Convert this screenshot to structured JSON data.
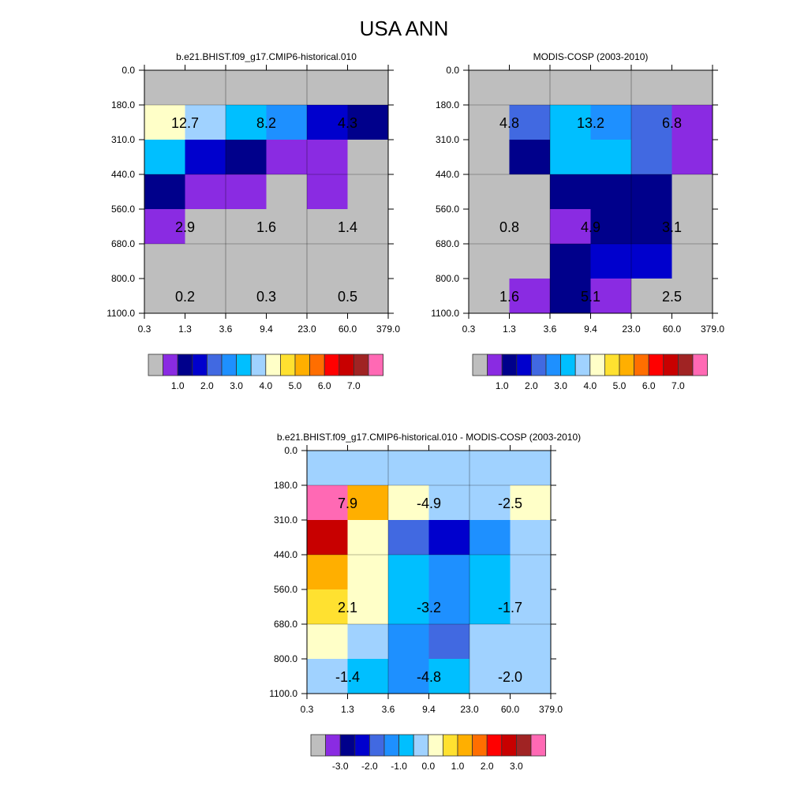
{
  "page_title": "USA ANN",
  "palette": [
    "#bebebe",
    "#8a2be2",
    "#00008b",
    "#0000cd",
    "#4169e1",
    "#1e90ff",
    "#00bfff",
    "#a0d2ff",
    "#ffffc8",
    "#ffe130",
    "#ffaf00",
    "#ff6e00",
    "#ff0000",
    "#c80000",
    "#a02323",
    "#ff69b4"
  ],
  "chart_data": [
    {
      "type": "heatmap",
      "title": "b.e21.BHIST.f09_g17.CMIP6-historical.010",
      "x_edges": [
        "0.3",
        "1.3",
        "3.6",
        "9.4",
        "23.0",
        "60.0",
        "379.0"
      ],
      "y_edges": [
        "0.0",
        "180.0",
        "310.0",
        "440.0",
        "560.0",
        "680.0",
        "800.0",
        "1100.0"
      ],
      "cell_color_index": [
        [
          0,
          0,
          0,
          0,
          0,
          0
        ],
        [
          8,
          7,
          6,
          5,
          3,
          2
        ],
        [
          6,
          3,
          2,
          1,
          1,
          0
        ],
        [
          2,
          1,
          1,
          0,
          1,
          0
        ],
        [
          1,
          0,
          0,
          0,
          0,
          0
        ],
        [
          0,
          0,
          0,
          0,
          0,
          0
        ],
        [
          0,
          0,
          0,
          0,
          0,
          0
        ]
      ],
      "group_labels": [
        {
          "col": 1,
          "row": 1,
          "text": "12.7"
        },
        {
          "col": 3,
          "row": 1,
          "text": "8.2"
        },
        {
          "col": 5,
          "row": 1,
          "text": "4.3"
        },
        {
          "col": 1,
          "row": 4,
          "text": "2.9"
        },
        {
          "col": 3,
          "row": 4,
          "text": "1.6"
        },
        {
          "col": 5,
          "row": 4,
          "text": "1.4"
        },
        {
          "col": 1,
          "row": 6,
          "text": "0.2"
        },
        {
          "col": 3,
          "row": 6,
          "text": "0.3"
        },
        {
          "col": 5,
          "row": 6,
          "text": "0.5"
        }
      ],
      "colorbar": {
        "labels": [
          "1.0",
          "2.0",
          "3.0",
          "4.0",
          "5.0",
          "6.0",
          "7.0"
        ],
        "label_boundaries": [
          2,
          4,
          6,
          8,
          10,
          12,
          14
        ]
      }
    },
    {
      "type": "heatmap",
      "title": "MODIS-COSP (2003-2010)",
      "x_edges": [
        "0.3",
        "1.3",
        "3.6",
        "9.4",
        "23.0",
        "60.0",
        "379.0"
      ],
      "y_edges": [
        "0.0",
        "180.0",
        "310.0",
        "440.0",
        "560.0",
        "680.0",
        "800.0",
        "1100.0"
      ],
      "cell_color_index": [
        [
          0,
          0,
          0,
          0,
          0,
          0
        ],
        [
          0,
          4,
          6,
          5,
          4,
          1
        ],
        [
          0,
          2,
          6,
          6,
          4,
          1
        ],
        [
          0,
          0,
          2,
          2,
          2,
          0
        ],
        [
          0,
          0,
          1,
          2,
          2,
          0
        ],
        [
          0,
          0,
          2,
          3,
          3,
          0
        ],
        [
          0,
          1,
          2,
          1,
          0,
          0
        ]
      ],
      "group_labels": [
        {
          "col": 1,
          "row": 1,
          "text": "4.8"
        },
        {
          "col": 3,
          "row": 1,
          "text": "13.2"
        },
        {
          "col": 5,
          "row": 1,
          "text": "6.8"
        },
        {
          "col": 1,
          "row": 4,
          "text": "0.8"
        },
        {
          "col": 3,
          "row": 4,
          "text": "4.9"
        },
        {
          "col": 5,
          "row": 4,
          "text": "3.1"
        },
        {
          "col": 1,
          "row": 6,
          "text": "1.6"
        },
        {
          "col": 3,
          "row": 6,
          "text": "5.1"
        },
        {
          "col": 5,
          "row": 6,
          "text": "2.5"
        }
      ],
      "colorbar": {
        "labels": [
          "1.0",
          "2.0",
          "3.0",
          "4.0",
          "5.0",
          "6.0",
          "7.0"
        ],
        "label_boundaries": [
          2,
          4,
          6,
          8,
          10,
          12,
          14
        ]
      }
    },
    {
      "type": "heatmap",
      "title": "b.e21.BHIST.f09_g17.CMIP6-historical.010 - MODIS-COSP (2003-2010)",
      "x_edges": [
        "0.3",
        "1.3",
        "3.6",
        "9.4",
        "23.0",
        "60.0",
        "379.0"
      ],
      "y_edges": [
        "0.0",
        "180.0",
        "310.0",
        "440.0",
        "560.0",
        "680.0",
        "800.0",
        "1100.0"
      ],
      "cell_color_index": [
        [
          7,
          7,
          7,
          7,
          7,
          7
        ],
        [
          15,
          10,
          8,
          7,
          7,
          8
        ],
        [
          13,
          8,
          4,
          3,
          5,
          7
        ],
        [
          10,
          8,
          6,
          5,
          6,
          7
        ],
        [
          9,
          8,
          6,
          5,
          6,
          7
        ],
        [
          8,
          7,
          5,
          4,
          7,
          7
        ],
        [
          7,
          6,
          5,
          6,
          7,
          7
        ]
      ],
      "group_labels": [
        {
          "col": 1,
          "row": 1,
          "text": "7.9"
        },
        {
          "col": 3,
          "row": 1,
          "text": "-4.9"
        },
        {
          "col": 5,
          "row": 1,
          "text": "-2.5"
        },
        {
          "col": 1,
          "row": 4,
          "text": "2.1"
        },
        {
          "col": 3,
          "row": 4,
          "text": "-3.2"
        },
        {
          "col": 5,
          "row": 4,
          "text": "-1.7"
        },
        {
          "col": 1,
          "row": 6,
          "text": "-1.4"
        },
        {
          "col": 3,
          "row": 6,
          "text": "-4.8"
        },
        {
          "col": 5,
          "row": 6,
          "text": "-2.0"
        }
      ],
      "colorbar": {
        "labels": [
          "-3.0",
          "-2.0",
          "-1.0",
          "0.0",
          "1.0",
          "2.0",
          "3.0"
        ],
        "label_boundaries": [
          2,
          4,
          6,
          8,
          10,
          12,
          14
        ]
      }
    }
  ]
}
